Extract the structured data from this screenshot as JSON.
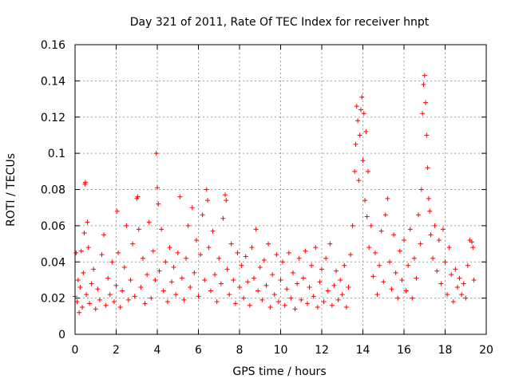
{
  "chart_data": {
    "type": "scatter",
    "title": "Day 321 of 2011, Rate Of TEC Index for receiver hnpt",
    "xlabel": "GPS time / hours",
    "ylabel": "ROTI / TECUs",
    "xlim": [
      0,
      20
    ],
    "ylim": [
      0,
      0.16
    ],
    "x_ticks": [
      "0",
      "2",
      "4",
      "6",
      "8",
      "10",
      "12",
      "14",
      "16",
      "18",
      "20"
    ],
    "y_ticks": [
      "0",
      "0.02",
      "0.04",
      "0.06",
      "0.08",
      "0.1",
      "0.12",
      "0.14",
      "0.16"
    ],
    "grid": true,
    "marker": "plus",
    "series_color": "#ff0000",
    "series": [
      {
        "points": [
          [
            0.0,
            0.021
          ],
          [
            0.05,
            0.045
          ],
          [
            0.1,
            0.018
          ],
          [
            0.15,
            0.03
          ],
          [
            0.2,
            0.012
          ],
          [
            0.25,
            0.026
          ],
          [
            0.3,
            0.046
          ],
          [
            0.35,
            0.015
          ],
          [
            0.4,
            0.034
          ],
          [
            0.45,
            0.056
          ],
          [
            0.48,
            0.083
          ],
          [
            0.5,
            0.084
          ],
          [
            0.55,
            0.022
          ],
          [
            0.6,
            0.062
          ],
          [
            0.65,
            0.048
          ],
          [
            0.7,
            0.017
          ],
          [
            0.8,
            0.028
          ],
          [
            0.9,
            0.036
          ],
          [
            1.0,
            0.014
          ],
          [
            1.1,
            0.025
          ],
          [
            1.2,
            0.019
          ],
          [
            1.3,
            0.044
          ],
          [
            1.4,
            0.055
          ],
          [
            1.5,
            0.016
          ],
          [
            1.6,
            0.031
          ],
          [
            1.7,
            0.022
          ],
          [
            1.8,
            0.04
          ],
          [
            1.9,
            0.018
          ],
          [
            2.0,
            0.027
          ],
          [
            2.05,
            0.068
          ],
          [
            2.1,
            0.045
          ],
          [
            2.2,
            0.015
          ],
          [
            2.3,
            0.024
          ],
          [
            2.4,
            0.037
          ],
          [
            2.5,
            0.06
          ],
          [
            2.6,
            0.019
          ],
          [
            2.7,
            0.03
          ],
          [
            2.8,
            0.05
          ],
          [
            2.9,
            0.021
          ],
          [
            3.0,
            0.075
          ],
          [
            3.05,
            0.076
          ],
          [
            3.1,
            0.058
          ],
          [
            3.2,
            0.026
          ],
          [
            3.3,
            0.042
          ],
          [
            3.4,
            0.017
          ],
          [
            3.5,
            0.033
          ],
          [
            3.6,
            0.062
          ],
          [
            3.7,
            0.02
          ],
          [
            3.8,
            0.046
          ],
          [
            3.9,
            0.03
          ],
          [
            3.95,
            0.1
          ],
          [
            4.0,
            0.081
          ],
          [
            4.05,
            0.072
          ],
          [
            4.1,
            0.035
          ],
          [
            4.2,
            0.058
          ],
          [
            4.3,
            0.024
          ],
          [
            4.4,
            0.04
          ],
          [
            4.5,
            0.018
          ],
          [
            4.6,
            0.048
          ],
          [
            4.7,
            0.029
          ],
          [
            4.8,
            0.037
          ],
          [
            4.9,
            0.022
          ],
          [
            5.0,
            0.045
          ],
          [
            5.1,
            0.076
          ],
          [
            5.2,
            0.031
          ],
          [
            5.3,
            0.019
          ],
          [
            5.4,
            0.042
          ],
          [
            5.5,
            0.06
          ],
          [
            5.6,
            0.026
          ],
          [
            5.7,
            0.07
          ],
          [
            5.8,
            0.034
          ],
          [
            5.9,
            0.052
          ],
          [
            6.0,
            0.021
          ],
          [
            6.1,
            0.044
          ],
          [
            6.2,
            0.066
          ],
          [
            6.3,
            0.03
          ],
          [
            6.4,
            0.08
          ],
          [
            6.45,
            0.074
          ],
          [
            6.5,
            0.048
          ],
          [
            6.6,
            0.024
          ],
          [
            6.7,
            0.057
          ],
          [
            6.8,
            0.033
          ],
          [
            6.9,
            0.018
          ],
          [
            7.0,
            0.042
          ],
          [
            7.1,
            0.028
          ],
          [
            7.2,
            0.064
          ],
          [
            7.3,
            0.077
          ],
          [
            7.35,
            0.074
          ],
          [
            7.4,
            0.036
          ],
          [
            7.5,
            0.022
          ],
          [
            7.6,
            0.05
          ],
          [
            7.7,
            0.03
          ],
          [
            7.8,
            0.017
          ],
          [
            7.9,
            0.045
          ],
          [
            8.0,
            0.026
          ],
          [
            8.1,
            0.038
          ],
          [
            8.2,
            0.02
          ],
          [
            8.3,
            0.043
          ],
          [
            8.4,
            0.029
          ],
          [
            8.5,
            0.016
          ],
          [
            8.6,
            0.048
          ],
          [
            8.7,
            0.031
          ],
          [
            8.8,
            0.058
          ],
          [
            8.9,
            0.024
          ],
          [
            9.0,
            0.037
          ],
          [
            9.1,
            0.019
          ],
          [
            9.2,
            0.041
          ],
          [
            9.3,
            0.027
          ],
          [
            9.4,
            0.05
          ],
          [
            9.5,
            0.015
          ],
          [
            9.6,
            0.033
          ],
          [
            9.7,
            0.022
          ],
          [
            9.8,
            0.044
          ],
          [
            9.9,
            0.018
          ],
          [
            10.0,
            0.03
          ],
          [
            10.1,
            0.04
          ],
          [
            10.2,
            0.016
          ],
          [
            10.3,
            0.025
          ],
          [
            10.4,
            0.045
          ],
          [
            10.5,
            0.02
          ],
          [
            10.6,
            0.034
          ],
          [
            10.7,
            0.014
          ],
          [
            10.8,
            0.028
          ],
          [
            10.9,
            0.042
          ],
          [
            11.0,
            0.019
          ],
          [
            11.1,
            0.031
          ],
          [
            11.2,
            0.046
          ],
          [
            11.3,
            0.017
          ],
          [
            11.4,
            0.026
          ],
          [
            11.5,
            0.038
          ],
          [
            11.6,
            0.021
          ],
          [
            11.7,
            0.048
          ],
          [
            11.8,
            0.015
          ],
          [
            11.9,
            0.029
          ],
          [
            12.0,
            0.036
          ],
          [
            12.1,
            0.018
          ],
          [
            12.2,
            0.042
          ],
          [
            12.3,
            0.024
          ],
          [
            12.4,
            0.05
          ],
          [
            12.5,
            0.016
          ],
          [
            12.6,
            0.027
          ],
          [
            12.7,
            0.035
          ],
          [
            12.8,
            0.019
          ],
          [
            12.9,
            0.03
          ],
          [
            13.0,
            0.022
          ],
          [
            13.1,
            0.038
          ],
          [
            13.2,
            0.015
          ],
          [
            13.3,
            0.026
          ],
          [
            13.4,
            0.044
          ],
          [
            13.5,
            0.06
          ],
          [
            13.6,
            0.09
          ],
          [
            13.65,
            0.105
          ],
          [
            13.7,
            0.126
          ],
          [
            13.75,
            0.118
          ],
          [
            13.8,
            0.085
          ],
          [
            13.85,
            0.11
          ],
          [
            13.9,
            0.124
          ],
          [
            13.95,
            0.131
          ],
          [
            14.0,
            0.096
          ],
          [
            14.05,
            0.122
          ],
          [
            14.1,
            0.074
          ],
          [
            14.15,
            0.112
          ],
          [
            14.2,
            0.065
          ],
          [
            14.25,
            0.09
          ],
          [
            14.3,
            0.048
          ],
          [
            14.4,
            0.06
          ],
          [
            14.5,
            0.032
          ],
          [
            14.6,
            0.045
          ],
          [
            14.7,
            0.022
          ],
          [
            14.8,
            0.038
          ],
          [
            14.9,
            0.057
          ],
          [
            15.0,
            0.029
          ],
          [
            15.1,
            0.066
          ],
          [
            15.2,
            0.075
          ],
          [
            15.3,
            0.04
          ],
          [
            15.4,
            0.025
          ],
          [
            15.5,
            0.055
          ],
          [
            15.6,
            0.034
          ],
          [
            15.7,
            0.02
          ],
          [
            15.8,
            0.046
          ],
          [
            15.9,
            0.03
          ],
          [
            16.0,
            0.052
          ],
          [
            16.1,
            0.024
          ],
          [
            16.2,
            0.038
          ],
          [
            16.3,
            0.058
          ],
          [
            16.4,
            0.02
          ],
          [
            16.5,
            0.042
          ],
          [
            16.6,
            0.031
          ],
          [
            16.7,
            0.066
          ],
          [
            16.8,
            0.05
          ],
          [
            16.85,
            0.08
          ],
          [
            16.9,
            0.122
          ],
          [
            16.95,
            0.138
          ],
          [
            17.0,
            0.143
          ],
          [
            17.05,
            0.128
          ],
          [
            17.1,
            0.11
          ],
          [
            17.15,
            0.092
          ],
          [
            17.2,
            0.075
          ],
          [
            17.25,
            0.068
          ],
          [
            17.3,
            0.055
          ],
          [
            17.4,
            0.042
          ],
          [
            17.5,
            0.06
          ],
          [
            17.6,
            0.035
          ],
          [
            17.7,
            0.052
          ],
          [
            17.8,
            0.028
          ],
          [
            17.9,
            0.058
          ],
          [
            18.0,
            0.04
          ],
          [
            18.1,
            0.022
          ],
          [
            18.2,
            0.048
          ],
          [
            18.3,
            0.033
          ],
          [
            18.4,
            0.018
          ],
          [
            18.5,
            0.036
          ],
          [
            18.6,
            0.026
          ],
          [
            18.7,
            0.031
          ],
          [
            18.8,
            0.022
          ],
          [
            18.9,
            0.028
          ],
          [
            19.0,
            0.02
          ],
          [
            19.1,
            0.038
          ],
          [
            19.2,
            0.052
          ],
          [
            19.3,
            0.051
          ],
          [
            19.35,
            0.048
          ],
          [
            19.4,
            0.03
          ]
        ]
      }
    ]
  }
}
